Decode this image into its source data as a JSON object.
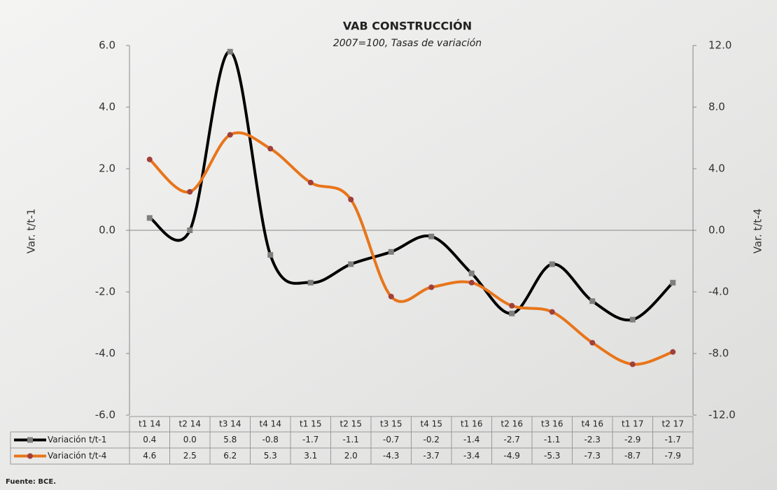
{
  "chart_data": {
    "type": "line",
    "title": "VAB CONSTRUCCIÓN",
    "subtitle": "2007=100, Tasas de variación",
    "y_label": "Var. t/t-1",
    "y2_label": "Var. t/t-4",
    "source": "Fuente: BCE.",
    "categories": [
      "t1 14",
      "t2 14",
      "t3 14",
      "t4 14",
      "t1 15",
      "t2 15",
      "t3 15",
      "t4 15",
      "t1 16",
      "t2 16",
      "t3 16",
      "t4 16",
      "t1 17",
      "t2 17"
    ],
    "series": [
      {
        "name": "Variación t/t-1",
        "color": "#000000",
        "marker_color": "#7f7f7f",
        "marker": "square",
        "values": [
          0.4,
          0.0,
          5.8,
          -0.8,
          -1.7,
          -1.1,
          -0.7,
          -0.2,
          -1.4,
          -2.7,
          -1.1,
          -2.3,
          -2.9,
          -1.7
        ],
        "value_labels": [
          "0.4",
          "0.0",
          "5.8",
          "-0.8",
          "-1.7",
          "-1.1",
          "-0.7",
          "-0.2",
          "-1.4",
          "-2.7",
          "-1.1",
          "-2.3",
          "-2.9",
          "-1.7"
        ]
      },
      {
        "name": "Variación t/t-4",
        "color": "#e8751a",
        "marker_color": "#a0403a",
        "marker": "circle",
        "axis": "y2",
        "values": [
          4.6,
          2.5,
          6.2,
          5.3,
          3.1,
          2.0,
          -4.3,
          -3.7,
          -3.4,
          -4.9,
          -5.3,
          -7.3,
          -8.7,
          -7.9
        ],
        "value_labels": [
          "4.6",
          "2.5",
          "6.2",
          "5.3",
          "3.1",
          "2.0",
          "-4.3",
          "-3.7",
          "-3.4",
          "-4.9",
          "-5.3",
          "-7.3",
          "-8.7",
          "-7.9"
        ]
      }
    ],
    "ylim": [
      -6,
      6
    ],
    "yticks": [
      {
        "value": -6,
        "label": "-6.0"
      },
      {
        "value": -4,
        "label": "-4.0"
      },
      {
        "value": -2,
        "label": "-2.0"
      },
      {
        "value": 0,
        "label": "0.0"
      },
      {
        "value": 2,
        "label": "2.0"
      },
      {
        "value": 4,
        "label": "4.0"
      },
      {
        "value": 6,
        "label": "6.0"
      }
    ],
    "y2lim": [
      -12,
      12
    ],
    "y2ticks": [
      {
        "value": -12,
        "label": "-12.0"
      },
      {
        "value": -8,
        "label": "-8.0"
      },
      {
        "value": -4,
        "label": "-4.0"
      },
      {
        "value": 0,
        "label": "0.0"
      },
      {
        "value": 4,
        "label": "4.0"
      },
      {
        "value": 8,
        "label": "8.0"
      },
      {
        "value": 12,
        "label": "12.0"
      }
    ],
    "smooth": true
  }
}
